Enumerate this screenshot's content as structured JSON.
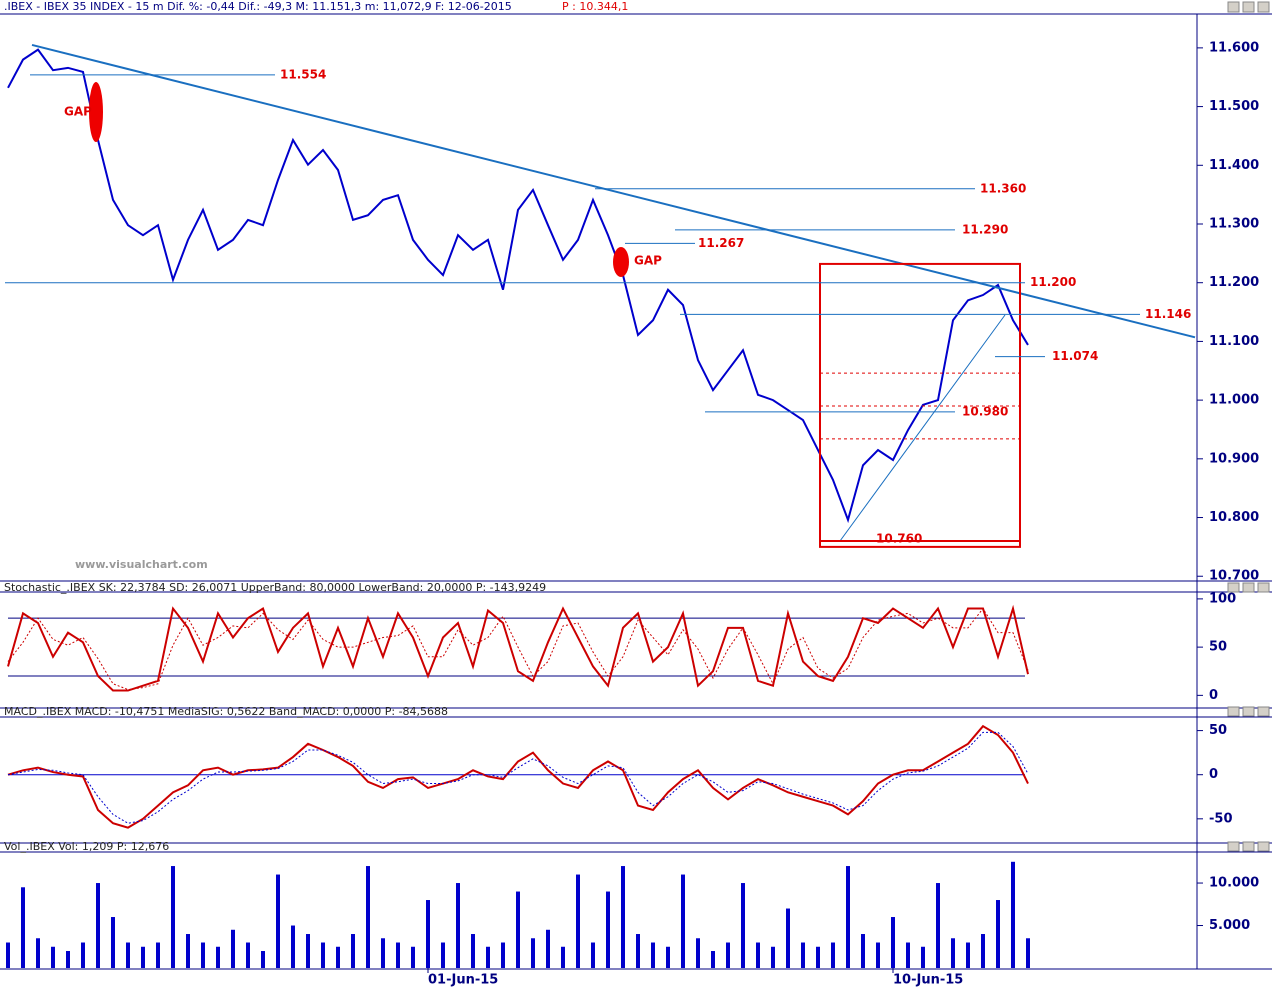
{
  "chart_data": [
    {
      "type": "line",
      "title": ".IBEX - IBEX 35 INDEX -  15 m Dif. %: -0,44 Dif.: -49,3 M: 11.151,3 m: 11,072,9 F: 12-06-2015",
      "subtitle": "P : 10.344,1",
      "watermark": "www.visualchart.com",
      "ylim": [
        10697,
        11656
      ],
      "yticks": [
        {
          "value": 11600,
          "label": "11.600"
        },
        {
          "value": 11500,
          "label": "11.500"
        },
        {
          "value": 11400,
          "label": "11.400"
        },
        {
          "value": 11300,
          "label": "11.300"
        },
        {
          "value": 11200,
          "label": "11.200"
        },
        {
          "value": 11100,
          "label": "11.100"
        },
        {
          "value": 11000,
          "label": "11.000"
        },
        {
          "value": 10900,
          "label": "10.900"
        },
        {
          "value": 10800,
          "label": "10.800"
        },
        {
          "value": 10700,
          "label": "10.700"
        }
      ],
      "series": [
        {
          "color": "#0000cc",
          "values": [
            11532,
            11580,
            11597,
            11562,
            11566,
            11559,
            11443,
            11341,
            11298,
            11281,
            11298,
            11205,
            11273,
            11324,
            11256,
            11273,
            11307,
            11298,
            11375,
            11443,
            11401,
            11426,
            11392,
            11307,
            11315,
            11341,
            11349,
            11273,
            11239,
            11213,
            11281,
            11256,
            11273,
            11188,
            11324,
            11358,
            11298,
            11239,
            11273,
            11341,
            11281,
            11213,
            11111,
            11136,
            11188,
            11162,
            11068,
            11017,
            11051,
            11085,
            11009,
            11000,
            10983,
            10966,
            10915,
            10864,
            10796,
            10889,
            10915,
            10898,
            10949,
            10992,
            11000,
            11136,
            11170,
            11179,
            11196,
            11136,
            11094
          ]
        }
      ],
      "levels": [
        {
          "value": 11554,
          "label": "11.554"
        },
        {
          "value": 11360,
          "label": "11.360"
        },
        {
          "value": 11290,
          "label": "11.290"
        },
        {
          "value": 11267,
          "label": "11.267"
        },
        {
          "value": 11200,
          "label": "11.200"
        },
        {
          "value": 11146,
          "label": "11.146"
        },
        {
          "value": 11074,
          "label": "11.074"
        },
        {
          "value": 10980,
          "label": "10.980"
        },
        {
          "value": 10760,
          "label": "10.760"
        }
      ],
      "level_color": "#e00000",
      "gaps": [
        "GAP",
        "GAP"
      ],
      "trendline": [
        11605,
        11107
      ],
      "trend_color": "#1a6fc0",
      "box": [
        11232,
        10750
      ],
      "dotted_levels": [
        11046,
        10990,
        10934
      ],
      "support_line": [
        10760,
        11145
      ]
    },
    {
      "type": "line",
      "title": "Stochastic_.IBEX SK: 22,3784 SD: 26,0071 UpperBand: 80,0000 LowerBand: 20,0000 P: -143,9249",
      "ylim": [
        -10,
        103
      ],
      "yticks": [
        100,
        50,
        0
      ],
      "bands": [
        80,
        20
      ],
      "series": [
        {
          "color": "#cc0000",
          "values": [
            30,
            85,
            75,
            40,
            65,
            55,
            20,
            5,
            5,
            10,
            15,
            90,
            70,
            35,
            85,
            60,
            80,
            90,
            45,
            70,
            85,
            30,
            70,
            30,
            80,
            40,
            85,
            60,
            20,
            60,
            75,
            30,
            88,
            75,
            25,
            15,
            55,
            90,
            60,
            30,
            10,
            70,
            85,
            35,
            50,
            85,
            10,
            25,
            70,
            70,
            15,
            10,
            85,
            35,
            20,
            15,
            40,
            80,
            75,
            90,
            80,
            70,
            90,
            50,
            90,
            90,
            40,
            90,
            22
          ]
        },
        {
          "color": "#cc0000",
          "dashed": true,
          "values": [
            35,
            55,
            80,
            58,
            52,
            60,
            38,
            12,
            6,
            8,
            12,
            52,
            80,
            52,
            60,
            72,
            70,
            85,
            68,
            58,
            78,
            58,
            50,
            50,
            55,
            60,
            62,
            72,
            40,
            40,
            68,
            52,
            60,
            82,
            50,
            20,
            35,
            72,
            75,
            45,
            20,
            40,
            78,
            60,
            42,
            68,
            48,
            18,
            48,
            70,
            42,
            12,
            48,
            60,
            28,
            18,
            28,
            60,
            78,
            82,
            85,
            75,
            80,
            70,
            70,
            90,
            65,
            65,
            26
          ]
        }
      ]
    },
    {
      "type": "line",
      "title": "MACD_.IBEX MACD: -10,4751 MediaSIG: 0,5622 Band_MACD: 0,0000 P: -84,5688",
      "ylim": [
        -74,
        62
      ],
      "yticks": [
        50,
        0,
        -50
      ],
      "bands": [
        0
      ],
      "series": [
        {
          "color": "#cc0000",
          "values": [
            0,
            5,
            8,
            3,
            0,
            -2,
            -40,
            -55,
            -60,
            -50,
            -35,
            -20,
            -12,
            5,
            8,
            0,
            5,
            6,
            8,
            20,
            35,
            28,
            20,
            10,
            -8,
            -15,
            -5,
            -3,
            -15,
            -10,
            -5,
            5,
            -2,
            -5,
            15,
            25,
            5,
            -10,
            -15,
            5,
            15,
            5,
            -35,
            -40,
            -20,
            -5,
            5,
            -15,
            -28,
            -15,
            -5,
            -12,
            -20,
            -25,
            -30,
            -35,
            -45,
            -30,
            -10,
            0,
            5,
            5,
            15,
            25,
            35,
            55,
            45,
            25,
            -10
          ]
        },
        {
          "color": "#0000cc",
          "dashed": true,
          "values": [
            0,
            3,
            6,
            5,
            2,
            0,
            -25,
            -45,
            -55,
            -52,
            -42,
            -28,
            -18,
            -5,
            3,
            3,
            4,
            5,
            7,
            15,
            28,
            28,
            22,
            14,
            0,
            -10,
            -8,
            -5,
            -10,
            -10,
            -7,
            0,
            0,
            -3,
            8,
            18,
            10,
            -3,
            -10,
            0,
            10,
            8,
            -20,
            -35,
            -25,
            -10,
            0,
            -8,
            -20,
            -18,
            -8,
            -10,
            -16,
            -22,
            -27,
            -32,
            -40,
            -35,
            -18,
            -5,
            2,
            4,
            10,
            20,
            30,
            48,
            48,
            32,
            1
          ]
        }
      ]
    },
    {
      "type": "bar",
      "title": "Vol_.IBEX Vol: 1,209 P: 12,676",
      "ylim": [
        0,
        13300
      ],
      "yticks": [
        {
          "value": 10000,
          "label": "10.000"
        },
        {
          "value": 5000,
          "label": "5.000"
        }
      ],
      "color": "#0000cc",
      "categories": [
        null,
        null,
        null,
        null,
        null,
        null,
        null,
        null,
        null,
        null,
        null,
        null,
        null,
        null,
        null,
        null,
        null,
        null,
        null,
        null,
        null,
        null,
        null,
        null,
        null,
        null,
        null,
        null,
        "01-Jun-15",
        null,
        null,
        null,
        null,
        null,
        null,
        null,
        null,
        null,
        null,
        null,
        null,
        null,
        null,
        null,
        null,
        null,
        null,
        null,
        null,
        null,
        null,
        null,
        null,
        null,
        null,
        null,
        null,
        null,
        null,
        "10-Jun-15",
        null,
        null,
        null,
        null,
        null,
        null,
        null,
        null,
        null
      ],
      "values": [
        3000,
        9500,
        3500,
        2500,
        2000,
        3000,
        10000,
        6000,
        3000,
        2500,
        3000,
        12000,
        4000,
        3000,
        2500,
        4500,
        3000,
        2000,
        11000,
        5000,
        4000,
        3000,
        2500,
        4000,
        12000,
        3500,
        3000,
        2500,
        8000,
        3000,
        10000,
        4000,
        2500,
        3000,
        9000,
        3500,
        4500,
        2500,
        11000,
        3000,
        9000,
        12000,
        4000,
        3000,
        2500,
        11000,
        3500,
        2000,
        3000,
        10000,
        3000,
        2500,
        7000,
        3000,
        2500,
        3000,
        12000,
        4000,
        3000,
        6000,
        3000,
        2500,
        10000,
        3500,
        3000,
        4000,
        8000,
        12500,
        3500
      ]
    }
  ]
}
